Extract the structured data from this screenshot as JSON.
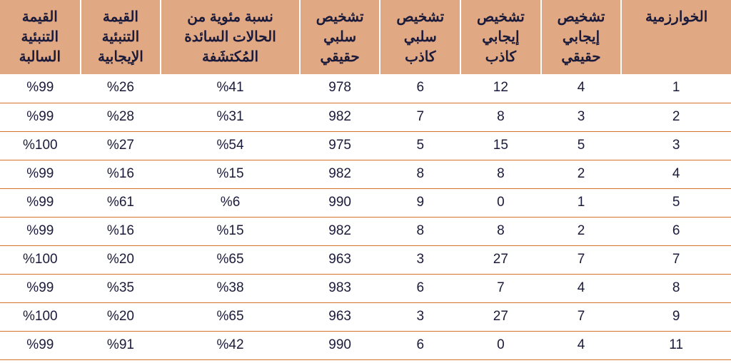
{
  "table": {
    "type": "table",
    "direction": "rtl",
    "header_bg_color": "#e1a884",
    "header_border_color": "#ffffff",
    "row_border_color": "#d4722b",
    "text_color": "#1a1a3a",
    "background_color": "#ffffff",
    "header_fontsize": 20,
    "cell_fontsize": 19,
    "columns": [
      {
        "key": "npv",
        "label": "القيمة التنبئية السالبة",
        "width": "11%"
      },
      {
        "key": "ppv",
        "label": "القيمة التنبئية الإيجابية",
        "width": "11%"
      },
      {
        "key": "pct",
        "label": "نسبة مئوية من الحالات السائدة المُكتشَفة",
        "width": "19%"
      },
      {
        "key": "tn",
        "label": "تشخيص سلبي حقيقي",
        "width": "11%"
      },
      {
        "key": "fn",
        "label": "تشخيص سلبي كاذب",
        "width": "11%"
      },
      {
        "key": "fp",
        "label": "تشخيص إيجابي كاذب",
        "width": "11%"
      },
      {
        "key": "tp",
        "label": "تشخيص إيجابي حقيقي",
        "width": "11%"
      },
      {
        "key": "alg",
        "label": "الخوارزمية",
        "width": "15%"
      }
    ],
    "rows": [
      {
        "npv": "%99",
        "ppv": "%26",
        "pct": "%41",
        "tn": "978",
        "fn": "6",
        "fp": "12",
        "tp": "4",
        "alg": "1"
      },
      {
        "npv": "%99",
        "ppv": "%28",
        "pct": "%31",
        "tn": "982",
        "fn": "7",
        "fp": "8",
        "tp": "3",
        "alg": "2"
      },
      {
        "npv": "%100",
        "ppv": "%27",
        "pct": "%54",
        "tn": "975",
        "fn": "5",
        "fp": "15",
        "tp": "5",
        "alg": "3"
      },
      {
        "npv": "%99",
        "ppv": "%16",
        "pct": "%15",
        "tn": "982",
        "fn": "8",
        "fp": "8",
        "tp": "2",
        "alg": "4"
      },
      {
        "npv": "%99",
        "ppv": "%61",
        "pct": "%6",
        "tn": "990",
        "fn": "9",
        "fp": "0",
        "tp": "1",
        "alg": "5"
      },
      {
        "npv": "%99",
        "ppv": "%16",
        "pct": "%15",
        "tn": "982",
        "fn": "8",
        "fp": "8",
        "tp": "2",
        "alg": "6"
      },
      {
        "npv": "%100",
        "ppv": "%20",
        "pct": "%65",
        "tn": "963",
        "fn": "3",
        "fp": "27",
        "tp": "7",
        "alg": "7"
      },
      {
        "npv": "%99",
        "ppv": "%35",
        "pct": "%38",
        "tn": "983",
        "fn": "6",
        "fp": "7",
        "tp": "4",
        "alg": "8"
      },
      {
        "npv": "%100",
        "ppv": "%20",
        "pct": "%65",
        "tn": "963",
        "fn": "3",
        "fp": "27",
        "tp": "7",
        "alg": "9"
      },
      {
        "npv": "%99",
        "ppv": "%91",
        "pct": "%42",
        "tn": "990",
        "fn": "6",
        "fp": "0",
        "tp": "4",
        "alg": "11"
      }
    ]
  }
}
